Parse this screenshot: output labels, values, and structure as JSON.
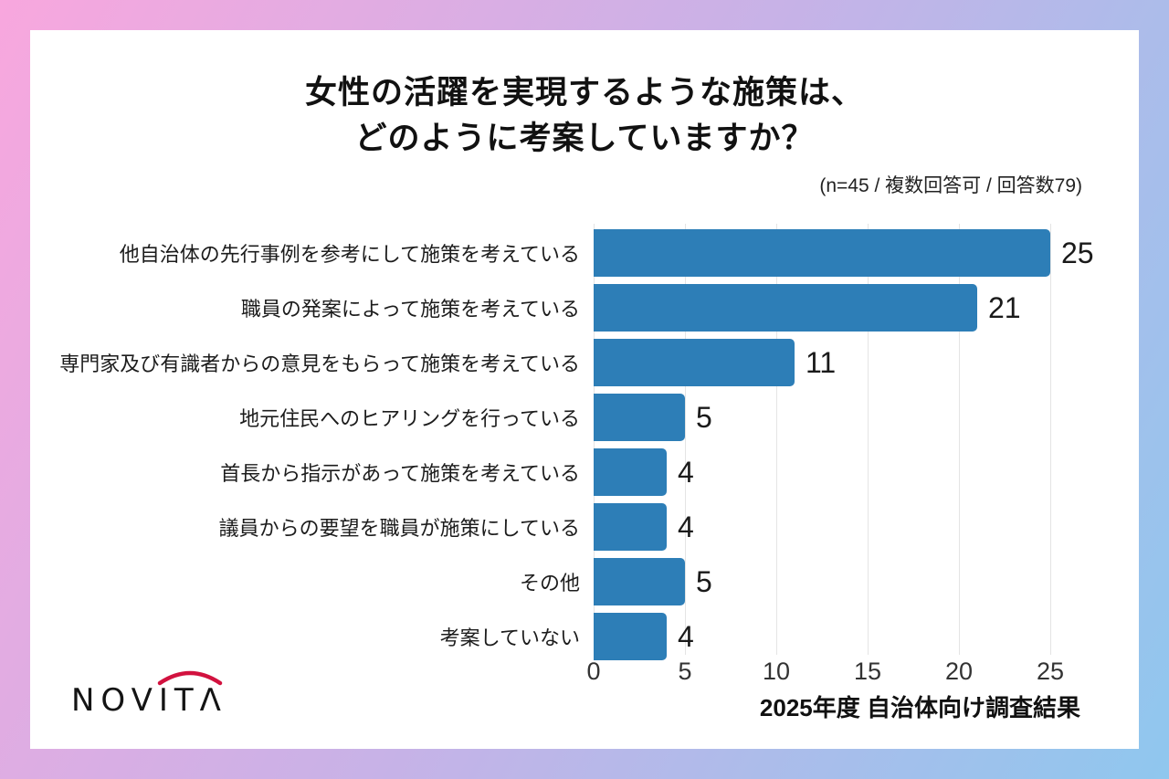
{
  "frame": {
    "gradient_colors": [
      "#f8a7de",
      "#c7b2e7",
      "#8fc7ee"
    ]
  },
  "title": {
    "line1": "女性の活躍を実現するような施策は、",
    "line2": "どのように考案していますか？"
  },
  "subtitle": "(n=45 / 複数回答可 / 回答数79)",
  "chart_data": {
    "type": "bar",
    "orientation": "horizontal",
    "title": "女性の活躍を実現するような施策は、どのように考案していますか？",
    "annotation": "(n=45 / 複数回答可 / 回答数79)",
    "categories": [
      "他自治体の先行事例を参考にして施策を考えている",
      "職員の発案によって施策を考えている",
      "専門家及び有識者からの意見をもらって施策を考えている",
      "地元住民へのヒアリングを行っている",
      "首長から指示があって施策を考えている",
      "議員からの要望を職員が施策にしている",
      "その他",
      "考案していない"
    ],
    "values": [
      25,
      21,
      11,
      5,
      4,
      4,
      5,
      4
    ],
    "xticks": [
      0,
      5,
      10,
      15,
      20,
      25
    ],
    "xlim": [
      0,
      25
    ],
    "bar_color": "#2d7eb7",
    "gridline_color": "#e4e4e4",
    "grid": true
  },
  "footer": {
    "logo_text": "NOVITΛ",
    "logo_arc_color": "#d2123f",
    "note": "2025年度 自治体向け調査結果"
  }
}
